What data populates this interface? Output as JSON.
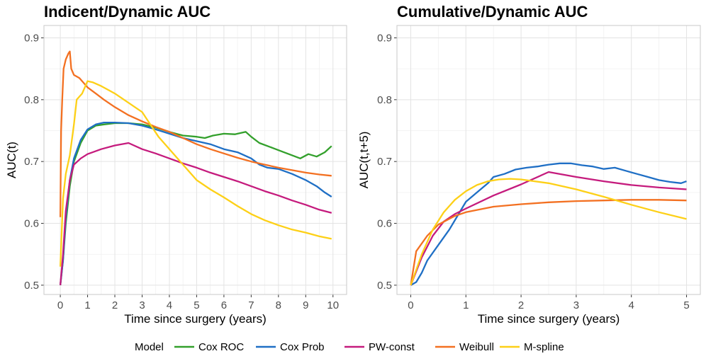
{
  "legend": {
    "title": "Model",
    "items": [
      {
        "label": "Cox ROC",
        "color": "#33a02c"
      },
      {
        "label": "Cox Prob",
        "color": "#1f6fc5"
      },
      {
        "label": "PW-const",
        "color": "#c51b7d"
      },
      {
        "label": "Weibull",
        "color": "#f37021"
      },
      {
        "label": "M-spline",
        "color": "#fdd017"
      }
    ]
  },
  "chart_data": [
    {
      "type": "line",
      "title": "Indicent/Dynamic AUC",
      "xlabel": "Time since surgery (years)",
      "ylabel": "AUC(t)",
      "xlim": [
        -0.6,
        10.5
      ],
      "ylim": [
        0.485,
        0.92
      ],
      "xticks": [
        0,
        1,
        2,
        3,
        4,
        5,
        6,
        7,
        8,
        9,
        10
      ],
      "yticks": [
        0.5,
        0.6,
        0.7,
        0.8,
        0.9
      ],
      "series": [
        {
          "name": "Cox ROC",
          "color": "#33a02c",
          "points": [
            [
              0,
              0.5
            ],
            [
              0.1,
              0.54
            ],
            [
              0.2,
              0.6
            ],
            [
              0.35,
              0.66
            ],
            [
              0.5,
              0.7
            ],
            [
              0.75,
              0.73
            ],
            [
              1.0,
              0.75
            ],
            [
              1.3,
              0.758
            ],
            [
              1.6,
              0.76
            ],
            [
              2.0,
              0.762
            ],
            [
              2.5,
              0.762
            ],
            [
              3.0,
              0.76
            ],
            [
              3.5,
              0.755
            ],
            [
              4.0,
              0.748
            ],
            [
              4.5,
              0.742
            ],
            [
              5.0,
              0.74
            ],
            [
              5.3,
              0.738
            ],
            [
              5.6,
              0.742
            ],
            [
              6.0,
              0.745
            ],
            [
              6.4,
              0.744
            ],
            [
              6.8,
              0.748
            ],
            [
              7.0,
              0.74
            ],
            [
              7.3,
              0.73
            ],
            [
              7.6,
              0.725
            ],
            [
              7.9,
              0.72
            ],
            [
              8.2,
              0.715
            ],
            [
              8.5,
              0.71
            ],
            [
              8.8,
              0.705
            ],
            [
              9.1,
              0.712
            ],
            [
              9.4,
              0.708
            ],
            [
              9.7,
              0.715
            ],
            [
              9.95,
              0.725
            ]
          ]
        },
        {
          "name": "Cox Prob",
          "color": "#1f6fc5",
          "points": [
            [
              0,
              0.5
            ],
            [
              0.1,
              0.54
            ],
            [
              0.2,
              0.61
            ],
            [
              0.35,
              0.67
            ],
            [
              0.5,
              0.705
            ],
            [
              0.75,
              0.735
            ],
            [
              1.0,
              0.752
            ],
            [
              1.3,
              0.76
            ],
            [
              1.6,
              0.763
            ],
            [
              2.0,
              0.763
            ],
            [
              2.5,
              0.762
            ],
            [
              3.0,
              0.758
            ],
            [
              3.5,
              0.752
            ],
            [
              4.0,
              0.745
            ],
            [
              4.5,
              0.738
            ],
            [
              5.0,
              0.733
            ],
            [
              5.5,
              0.728
            ],
            [
              6.0,
              0.72
            ],
            [
              6.5,
              0.715
            ],
            [
              7.0,
              0.705
            ],
            [
              7.3,
              0.695
            ],
            [
              7.6,
              0.69
            ],
            [
              8.0,
              0.688
            ],
            [
              8.5,
              0.68
            ],
            [
              9.0,
              0.67
            ],
            [
              9.4,
              0.66
            ],
            [
              9.7,
              0.65
            ],
            [
              9.95,
              0.643
            ]
          ]
        },
        {
          "name": "PW-const",
          "color": "#c51b7d",
          "points": [
            [
              0,
              0.5
            ],
            [
              0.1,
              0.55
            ],
            [
              0.2,
              0.62
            ],
            [
              0.35,
              0.67
            ],
            [
              0.5,
              0.695
            ],
            [
              0.75,
              0.705
            ],
            [
              1.0,
              0.712
            ],
            [
              1.5,
              0.72
            ],
            [
              2.0,
              0.726
            ],
            [
              2.5,
              0.73
            ],
            [
              3.0,
              0.72
            ],
            [
              3.5,
              0.713
            ],
            [
              4.0,
              0.705
            ],
            [
              4.5,
              0.697
            ],
            [
              5.0,
              0.69
            ],
            [
              5.5,
              0.682
            ],
            [
              6.0,
              0.675
            ],
            [
              6.5,
              0.668
            ],
            [
              7.0,
              0.66
            ],
            [
              7.5,
              0.652
            ],
            [
              8.0,
              0.645
            ],
            [
              8.5,
              0.637
            ],
            [
              9.0,
              0.63
            ],
            [
              9.5,
              0.622
            ],
            [
              9.95,
              0.617
            ]
          ]
        },
        {
          "name": "Weibull",
          "color": "#f37021",
          "points": [
            [
              0,
              0.61
            ],
            [
              0.03,
              0.75
            ],
            [
              0.07,
              0.8
            ],
            [
              0.12,
              0.85
            ],
            [
              0.2,
              0.865
            ],
            [
              0.3,
              0.875
            ],
            [
              0.35,
              0.878
            ],
            [
              0.4,
              0.85
            ],
            [
              0.5,
              0.84
            ],
            [
              0.7,
              0.835
            ],
            [
              1.0,
              0.82
            ],
            [
              1.3,
              0.81
            ],
            [
              1.6,
              0.8
            ],
            [
              2.0,
              0.788
            ],
            [
              2.5,
              0.775
            ],
            [
              3.0,
              0.765
            ],
            [
              3.5,
              0.756
            ],
            [
              4.0,
              0.748
            ],
            [
              4.5,
              0.738
            ],
            [
              5.0,
              0.728
            ],
            [
              5.5,
              0.72
            ],
            [
              6.0,
              0.713
            ],
            [
              6.5,
              0.706
            ],
            [
              7.0,
              0.7
            ],
            [
              7.5,
              0.695
            ],
            [
              8.0,
              0.69
            ],
            [
              8.5,
              0.686
            ],
            [
              9.0,
              0.682
            ],
            [
              9.5,
              0.679
            ],
            [
              9.95,
              0.677
            ]
          ]
        },
        {
          "name": "M-spline",
          "color": "#fdd017",
          "points": [
            [
              0,
              0.53
            ],
            [
              0.1,
              0.64
            ],
            [
              0.2,
              0.68
            ],
            [
              0.35,
              0.71
            ],
            [
              0.5,
              0.76
            ],
            [
              0.6,
              0.8
            ],
            [
              0.8,
              0.81
            ],
            [
              1.0,
              0.83
            ],
            [
              1.2,
              0.828
            ],
            [
              1.5,
              0.822
            ],
            [
              2.0,
              0.81
            ],
            [
              2.5,
              0.795
            ],
            [
              3.0,
              0.78
            ],
            [
              3.3,
              0.76
            ],
            [
              3.6,
              0.74
            ],
            [
              4.0,
              0.72
            ],
            [
              4.5,
              0.695
            ],
            [
              5.0,
              0.67
            ],
            [
              5.5,
              0.655
            ],
            [
              6.0,
              0.642
            ],
            [
              6.5,
              0.628
            ],
            [
              7.0,
              0.615
            ],
            [
              7.5,
              0.605
            ],
            [
              8.0,
              0.597
            ],
            [
              8.5,
              0.59
            ],
            [
              9.0,
              0.585
            ],
            [
              9.5,
              0.579
            ],
            [
              9.95,
              0.575
            ]
          ]
        }
      ]
    },
    {
      "type": "line",
      "title": "Cumulative/Dynamic AUC",
      "xlabel": "Time since surgery (years)",
      "ylabel": "AUC(t,t+5)",
      "xlim": [
        -0.25,
        5.25
      ],
      "ylim": [
        0.485,
        0.92
      ],
      "xticks": [
        0,
        1,
        2,
        3,
        4,
        5
      ],
      "yticks": [
        0.5,
        0.6,
        0.7,
        0.8,
        0.9
      ],
      "series": [
        {
          "name": "Cox ROC",
          "color": "#33a02c",
          "points": []
        },
        {
          "name": "Cox Prob",
          "color": "#1f6fc5",
          "points": [
            [
              0,
              0.5
            ],
            [
              0.1,
              0.505
            ],
            [
              0.2,
              0.52
            ],
            [
              0.3,
              0.54
            ],
            [
              0.5,
              0.565
            ],
            [
              0.7,
              0.59
            ],
            [
              0.9,
              0.62
            ],
            [
              1.0,
              0.635
            ],
            [
              1.2,
              0.65
            ],
            [
              1.4,
              0.665
            ],
            [
              1.5,
              0.675
            ],
            [
              1.7,
              0.68
            ],
            [
              1.9,
              0.687
            ],
            [
              2.1,
              0.69
            ],
            [
              2.3,
              0.692
            ],
            [
              2.5,
              0.695
            ],
            [
              2.7,
              0.697
            ],
            [
              2.9,
              0.697
            ],
            [
              3.1,
              0.694
            ],
            [
              3.3,
              0.692
            ],
            [
              3.5,
              0.688
            ],
            [
              3.7,
              0.69
            ],
            [
              3.9,
              0.685
            ],
            [
              4.1,
              0.68
            ],
            [
              4.3,
              0.675
            ],
            [
              4.5,
              0.67
            ],
            [
              4.7,
              0.667
            ],
            [
              4.9,
              0.665
            ],
            [
              5.0,
              0.668
            ]
          ]
        },
        {
          "name": "PW-const",
          "color": "#c51b7d",
          "points": [
            [
              0,
              0.5
            ],
            [
              0.2,
              0.545
            ],
            [
              0.4,
              0.58
            ],
            [
              0.6,
              0.603
            ],
            [
              0.8,
              0.615
            ],
            [
              1.0,
              0.624
            ],
            [
              1.5,
              0.645
            ],
            [
              2.0,
              0.663
            ],
            [
              2.5,
              0.683
            ],
            [
              3.0,
              0.675
            ],
            [
              3.5,
              0.668
            ],
            [
              4.0,
              0.662
            ],
            [
              4.5,
              0.658
            ],
            [
              5.0,
              0.655
            ]
          ]
        },
        {
          "name": "Weibull",
          "color": "#f37021",
          "points": [
            [
              0,
              0.5
            ],
            [
              0.1,
              0.555
            ],
            [
              0.3,
              0.58
            ],
            [
              0.5,
              0.598
            ],
            [
              0.8,
              0.612
            ],
            [
              1.0,
              0.618
            ],
            [
              1.5,
              0.627
            ],
            [
              2.0,
              0.631
            ],
            [
              2.5,
              0.634
            ],
            [
              3.0,
              0.636
            ],
            [
              3.5,
              0.637
            ],
            [
              4.0,
              0.638
            ],
            [
              4.5,
              0.638
            ],
            [
              5.0,
              0.637
            ]
          ]
        },
        {
          "name": "M-spline",
          "color": "#fdd017",
          "points": [
            [
              0,
              0.5
            ],
            [
              0.2,
              0.55
            ],
            [
              0.4,
              0.59
            ],
            [
              0.6,
              0.618
            ],
            [
              0.8,
              0.638
            ],
            [
              1.0,
              0.652
            ],
            [
              1.2,
              0.662
            ],
            [
              1.4,
              0.668
            ],
            [
              1.6,
              0.671
            ],
            [
              1.8,
              0.672
            ],
            [
              2.0,
              0.671
            ],
            [
              2.5,
              0.665
            ],
            [
              3.0,
              0.655
            ],
            [
              3.5,
              0.643
            ],
            [
              4.0,
              0.63
            ],
            [
              4.5,
              0.618
            ],
            [
              5.0,
              0.607
            ]
          ]
        }
      ]
    }
  ]
}
